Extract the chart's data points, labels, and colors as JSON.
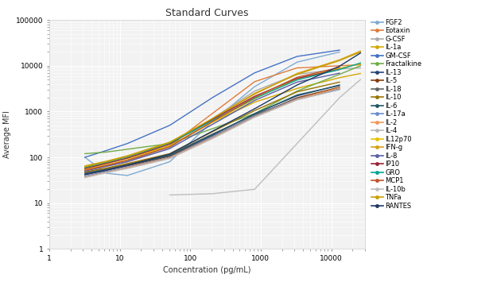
{
  "title": "Standard Curves",
  "xlabel": "Concentration (pg/mL)",
  "ylabel": "Average MFI",
  "xlim": [
    1,
    30000
  ],
  "ylim": [
    1,
    100000
  ],
  "analytes": [
    {
      "name": "FGF2",
      "color": "#7FA9D4",
      "x": [
        3.2,
        6.4,
        12.8,
        51.2,
        204.8,
        819.2,
        3276.8,
        13107.2
      ],
      "y": [
        100,
        45,
        40,
        80,
        600,
        3500,
        12000,
        20000
      ]
    },
    {
      "name": "Eotaxin",
      "color": "#E07B39",
      "x": [
        3.2,
        6.4,
        12.8,
        51.2,
        204.8,
        819.2,
        3276.8,
        13107.2,
        26000
      ],
      "y": [
        55,
        65,
        80,
        180,
        900,
        4500,
        9000,
        10000,
        10500
      ]
    },
    {
      "name": "G-CSF",
      "color": "#AAAAAA",
      "x": [
        3.2,
        6.4,
        12.8,
        51.2,
        204.8,
        819.2,
        3276.8,
        13107.2,
        26000
      ],
      "y": [
        55,
        65,
        80,
        160,
        700,
        2800,
        6500,
        8500,
        9000
      ]
    },
    {
      "name": "IL-1a",
      "color": "#D4A800",
      "x": [
        3.2,
        6.4,
        12.8,
        51.2,
        204.8,
        819.2,
        3276.8,
        13107.2,
        26000
      ],
      "y": [
        60,
        75,
        95,
        180,
        580,
        1600,
        3200,
        5500,
        6800
      ]
    },
    {
      "name": "GM-CSF",
      "color": "#4472C4",
      "x": [
        3.2,
        6.4,
        12.8,
        51.2,
        204.8,
        819.2,
        3276.8,
        13107.2
      ],
      "y": [
        100,
        140,
        200,
        500,
        2000,
        7000,
        16000,
        22000
      ]
    },
    {
      "name": "Fractalkine",
      "color": "#70AD47",
      "x": [
        3.2,
        6.4,
        12.8,
        51.2,
        204.8,
        819.2,
        3276.8,
        13107.2,
        26000
      ],
      "y": [
        120,
        130,
        150,
        200,
        420,
        900,
        2800,
        6500,
        10000
      ]
    },
    {
      "name": "IL-13",
      "color": "#264478",
      "x": [
        3.2,
        6.4,
        12.8,
        51.2,
        204.8,
        819.2,
        3276.8,
        13107.2
      ],
      "y": [
        45,
        55,
        68,
        110,
        300,
        900,
        2200,
        3800
      ]
    },
    {
      "name": "IL-5",
      "color": "#843C0C",
      "x": [
        3.2,
        6.4,
        12.8,
        51.2,
        204.8,
        819.2,
        3276.8,
        13107.2
      ],
      "y": [
        42,
        52,
        65,
        105,
        280,
        800,
        2000,
        3400
      ]
    },
    {
      "name": "IL-18",
      "color": "#636363",
      "x": [
        3.2,
        6.4,
        12.8,
        51.2,
        204.8,
        819.2,
        3276.8,
        13107.2
      ],
      "y": [
        46,
        56,
        70,
        115,
        320,
        850,
        1900,
        3100
      ]
    },
    {
      "name": "IL-10",
      "color": "#997300",
      "x": [
        3.2,
        6.4,
        12.8,
        51.2,
        204.8,
        819.2,
        3276.8,
        13107.2
      ],
      "y": [
        48,
        58,
        73,
        120,
        360,
        1050,
        2700,
        4400
      ]
    },
    {
      "name": "IL-6",
      "color": "#215868",
      "x": [
        3.2,
        6.4,
        12.8,
        51.2,
        204.8,
        819.2,
        3276.8,
        13107.2
      ],
      "y": [
        43,
        53,
        67,
        110,
        310,
        880,
        2300,
        3700
      ]
    },
    {
      "name": "IL-17a",
      "color": "#698ED0",
      "x": [
        3.2,
        6.4,
        12.8,
        51.2,
        204.8,
        819.2,
        3276.8,
        13107.2
      ],
      "y": [
        39,
        49,
        61,
        100,
        280,
        800,
        1900,
        3100
      ]
    },
    {
      "name": "IL-2",
      "color": "#F1975A",
      "x": [
        3.2,
        6.4,
        12.8,
        51.2,
        204.8,
        819.2,
        3276.8,
        13107.2
      ],
      "y": [
        37,
        47,
        59,
        97,
        265,
        770,
        1850,
        3300
      ]
    },
    {
      "name": "IL-4",
      "color": "#B7B7B7",
      "x": [
        3.2,
        6.4,
        12.8,
        51.2,
        204.8,
        819.2,
        3276.8,
        13107.2
      ],
      "y": [
        36,
        46,
        57,
        94,
        255,
        750,
        1800,
        3000
      ]
    },
    {
      "name": "IL12p70",
      "color": "#E6C100",
      "x": [
        3.2,
        6.4,
        12.8,
        51.2,
        204.8,
        819.2,
        3276.8,
        13107.2,
        26000
      ],
      "y": [
        55,
        68,
        88,
        175,
        580,
        1900,
        5200,
        8800,
        11000
      ]
    },
    {
      "name": "IFN-g",
      "color": "#D4A017",
      "x": [
        3.2,
        6.4,
        12.8,
        51.2,
        204.8,
        819.2,
        3276.8,
        13107.2,
        26000
      ],
      "y": [
        65,
        82,
        108,
        215,
        680,
        2400,
        6800,
        13500,
        21000
      ]
    },
    {
      "name": "IL-8",
      "color": "#5B5EA6",
      "x": [
        3.2,
        6.4,
        12.8,
        51.2,
        204.8,
        819.2,
        3276.8,
        13107.2
      ],
      "y": [
        50,
        63,
        80,
        155,
        520,
        1750,
        4400,
        6900
      ]
    },
    {
      "name": "IP10",
      "color": "#9B2335",
      "x": [
        3.2,
        6.4,
        12.8,
        51.2,
        204.8,
        819.2,
        3276.8,
        13107.2
      ],
      "y": [
        57,
        73,
        96,
        195,
        670,
        2150,
        5300,
        8300
      ]
    },
    {
      "name": "GRO",
      "color": "#00A591",
      "x": [
        3.2,
        6.4,
        12.8,
        51.2,
        204.8,
        819.2,
        3276.8,
        13107.2,
        26000
      ],
      "y": [
        60,
        78,
        102,
        205,
        630,
        1950,
        4900,
        8300,
        11500
      ]
    },
    {
      "name": "MCP1",
      "color": "#C0522A",
      "x": [
        3.2,
        6.4,
        12.8,
        51.2,
        204.8,
        819.2,
        3276.8,
        13107.2
      ],
      "y": [
        52,
        66,
        86,
        170,
        600,
        2050,
        5600,
        9200
      ]
    },
    {
      "name": "IL-10b",
      "color": "#BEBEBE",
      "x": [
        51.2,
        204.8,
        819.2,
        3276.8,
        13107.2,
        26000
      ],
      "y": [
        15,
        16,
        20,
        200,
        2000,
        5000
      ]
    },
    {
      "name": "TNFa",
      "color": "#C8A000",
      "x": [
        3.2,
        6.4,
        12.8,
        51.2,
        204.8,
        819.2,
        3276.8,
        13107.2,
        26000
      ],
      "y": [
        62,
        80,
        105,
        210,
        700,
        2500,
        6500,
        13000,
        20000
      ]
    },
    {
      "name": "RANTES",
      "color": "#1F3864",
      "x": [
        3.2,
        6.4,
        12.8,
        51.2,
        204.8,
        819.2,
        3276.8,
        13107.2,
        26000
      ],
      "y": [
        42,
        52,
        67,
        118,
        370,
        1150,
        3800,
        9800,
        19000
      ]
    }
  ],
  "background_color": "#FFFFFF",
  "plot_bg_color": "#F2F2F2",
  "grid_color": "#FFFFFF",
  "title_fontsize": 9,
  "label_fontsize": 7,
  "legend_fontsize": 6,
  "linewidth": 1.0,
  "marker_size": 3
}
